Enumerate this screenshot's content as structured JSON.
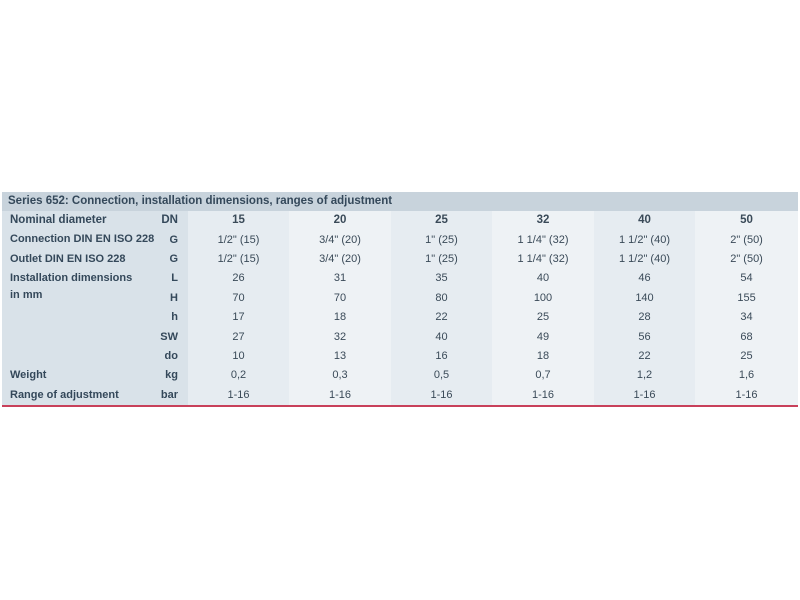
{
  "title": "Series 652: Connection, installation dimensions, ranges of adjustment",
  "header": {
    "label": "Nominal diameter",
    "symbol": "DN",
    "values": [
      "15",
      "20",
      "25",
      "32",
      "40",
      "50"
    ]
  },
  "rows": [
    {
      "label": "Connection DIN EN ISO 228",
      "symbol": "G",
      "values": [
        "1/2\" (15)",
        "3/4\" (20)",
        "1\" (25)",
        "1 1/4\" (32)",
        "1 1/2\" (40)",
        "2\" (50)"
      ]
    },
    {
      "label": "Outlet DIN EN ISO 228",
      "symbol": "G",
      "values": [
        "1/2\" (15)",
        "3/4\" (20)",
        "1\" (25)",
        "1 1/4\" (32)",
        "1 1/2\" (40)",
        "2\" (50)"
      ]
    },
    {
      "symbol": "L",
      "values": [
        "26",
        "31",
        "35",
        "40",
        "46",
        "54"
      ]
    },
    {
      "symbol": "H",
      "values": [
        "70",
        "70",
        "80",
        "100",
        "140",
        "155"
      ]
    },
    {
      "symbol": "h",
      "values": [
        "17",
        "18",
        "22",
        "25",
        "28",
        "34"
      ]
    },
    {
      "symbol": "SW",
      "values": [
        "27",
        "32",
        "40",
        "49",
        "56",
        "68"
      ]
    },
    {
      "symbol": "do",
      "values": [
        "10",
        "13",
        "16",
        "18",
        "22",
        "25"
      ]
    },
    {
      "label": "Weight",
      "symbol": "kg",
      "values": [
        "0,2",
        "0,3",
        "0,5",
        "0,7",
        "1,2",
        "1,6"
      ]
    },
    {
      "label": "Range of adjustment",
      "symbol": "bar",
      "values": [
        "1-16",
        "1-16",
        "1-16",
        "1-16",
        "1-16",
        "1-16"
      ]
    }
  ],
  "installation_label_line1": "Installation dimensions",
  "installation_label_line2": "in mm"
}
